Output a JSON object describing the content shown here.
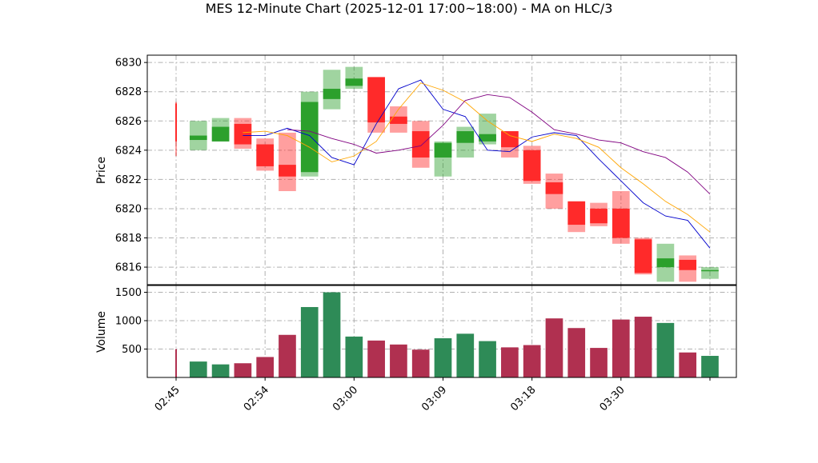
{
  "chart_data": {
    "type": "candlestick",
    "title": "MES 12-Minute Chart (2025-12-01 17:00~18:00) - MA on HLC/3",
    "price_panel": {
      "ylabel": "Price",
      "ylim": [
        6814.8,
        6830.5
      ],
      "yticks": [
        6816,
        6818,
        6820,
        6822,
        6824,
        6826,
        6828,
        6830
      ],
      "grid": true
    },
    "volume_panel": {
      "ylabel": "Volume",
      "ylim": [
        0,
        1620
      ],
      "yticks": [
        500,
        1000,
        1500
      ],
      "grid": true
    },
    "x": {
      "time_start": "02:45",
      "time_end": "03:45",
      "tick_labels": [
        "02:45",
        "02:54",
        "03:00",
        "03:09",
        "03:18",
        "03:30",
        ""
      ]
    },
    "colors": {
      "up": "#2ca02c",
      "down": "#ff2a2a",
      "ma_fast": "#0000cc",
      "ma_mid": "#ffa500",
      "ma_slow": "#800080",
      "grid": "#b0b0b0",
      "volume_up": "#2e8b57",
      "volume_down": "#b03050"
    },
    "candles": [
      {
        "open": 6827.2,
        "high": 6827.3,
        "low": 6823.6,
        "close": 6824.6,
        "volume": 500
      },
      {
        "open": 6824.7,
        "high": 6826.0,
        "low": 6824.0,
        "close": 6825.0,
        "volume": 280
      },
      {
        "open": 6824.6,
        "high": 6826.2,
        "low": 6824.6,
        "close": 6825.6,
        "volume": 230
      },
      {
        "open": 6825.8,
        "high": 6826.2,
        "low": 6824.1,
        "close": 6824.4,
        "volume": 250
      },
      {
        "open": 6824.4,
        "high": 6824.8,
        "low": 6822.6,
        "close": 6822.9,
        "volume": 360
      },
      {
        "open": 6823.0,
        "high": 6825.2,
        "low": 6821.2,
        "close": 6822.2,
        "volume": 750
      },
      {
        "open": 6822.5,
        "high": 6828.0,
        "low": 6822.2,
        "close": 6827.3,
        "volume": 1240
      },
      {
        "open": 6827.5,
        "high": 6829.5,
        "low": 6826.8,
        "close": 6828.2,
        "volume": 1500
      },
      {
        "open": 6828.4,
        "high": 6829.7,
        "low": 6828.2,
        "close": 6828.9,
        "volume": 720
      },
      {
        "open": 6829.0,
        "high": 6829.0,
        "low": 6825.2,
        "close": 6825.9,
        "volume": 650
      },
      {
        "open": 6826.3,
        "high": 6827.0,
        "low": 6825.2,
        "close": 6825.8,
        "volume": 580
      },
      {
        "open": 6825.3,
        "high": 6826.0,
        "low": 6822.8,
        "close": 6823.5,
        "volume": 490
      },
      {
        "open": 6823.5,
        "high": 6824.6,
        "low": 6822.2,
        "close": 6824.5,
        "volume": 690
      },
      {
        "open": 6824.5,
        "high": 6825.6,
        "low": 6823.5,
        "close": 6825.3,
        "volume": 770
      },
      {
        "open": 6824.6,
        "high": 6826.5,
        "low": 6824.4,
        "close": 6825.1,
        "volume": 640
      },
      {
        "open": 6825.3,
        "high": 6825.3,
        "low": 6823.5,
        "close": 6824.2,
        "volume": 530
      },
      {
        "open": 6824.0,
        "high": 6824.3,
        "low": 6821.7,
        "close": 6821.9,
        "volume": 570
      },
      {
        "open": 6821.8,
        "high": 6822.4,
        "low": 6820.0,
        "close": 6821.0,
        "volume": 1040
      },
      {
        "open": 6820.5,
        "high": 6820.5,
        "low": 6818.4,
        "close": 6818.9,
        "volume": 870
      },
      {
        "open": 6820.0,
        "high": 6820.4,
        "low": 6818.8,
        "close": 6819.0,
        "volume": 520
      },
      {
        "open": 6820.0,
        "high": 6821.2,
        "low": 6817.6,
        "close": 6818.0,
        "volume": 1020
      },
      {
        "open": 6817.9,
        "high": 6818.0,
        "low": 6815.5,
        "close": 6815.6,
        "volume": 1070
      },
      {
        "open": 6816.0,
        "high": 6817.6,
        "low": 6815.0,
        "close": 6816.6,
        "volume": 960
      },
      {
        "open": 6816.5,
        "high": 6816.8,
        "low": 6815.0,
        "close": 6815.8,
        "volume": 440
      },
      {
        "open": 6815.8,
        "high": 6816.0,
        "low": 6815.2,
        "close": 6815.8,
        "volume": 380
      }
    ],
    "moving_averages": [
      {
        "key": "ma_fast",
        "values": [
          6825.0,
          6825.0,
          6825.5,
          6825.0,
          6823.5,
          6823.0,
          6825.8,
          6828.2,
          6828.8,
          6826.8,
          6826.3,
          6824.0,
          6823.9,
          6824.9,
          6825.2,
          6825.0,
          6823.4,
          6821.9,
          6820.4,
          6819.5,
          6819.2,
          6817.3
        ]
      },
      {
        "key": "ma_mid",
        "values": [
          6825.2,
          6825.3,
          6825.0,
          6824.2,
          6823.2,
          6823.6,
          6824.6,
          6826.8,
          6828.6,
          6828.1,
          6827.3,
          6826.0,
          6825.0,
          6824.6,
          6825.1,
          6824.8,
          6824.2,
          6822.8,
          6821.7,
          6820.5,
          6819.6,
          6818.4
        ]
      },
      {
        "key": "ma_slow",
        "values": [
          6825.4,
          6825.3,
          6824.8,
          6824.4,
          6823.8,
          6824.0,
          6824.3,
          6825.7,
          6827.4,
          6827.8,
          6827.6,
          6826.6,
          6825.4,
          6825.1,
          6824.7,
          6824.5,
          6823.9,
          6823.5,
          6822.5,
          6821.0
        ]
      }
    ]
  }
}
